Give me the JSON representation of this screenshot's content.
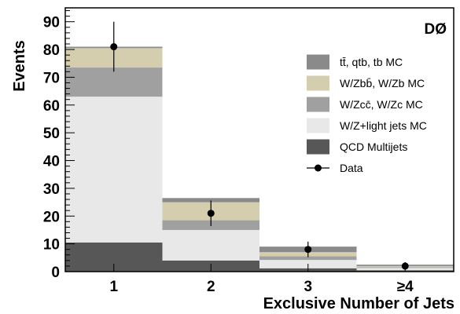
{
  "chart_data": {
    "type": "bar",
    "stacked": true,
    "categories": [
      "1",
      "2",
      "3",
      "≥4"
    ],
    "xlabel": "Exclusive Number of Jets",
    "ylabel": "Events",
    "ylim": [
      0,
      95
    ],
    "yticks": [
      0,
      10,
      20,
      30,
      40,
      50,
      60,
      70,
      80,
      90
    ],
    "experiment_label": "DØ",
    "series": [
      {
        "name": "QCD Multijets",
        "color": "#575757",
        "values": [
          10.5,
          4.0,
          1.2,
          0.5
        ]
      },
      {
        "name": "W/Z+light jets MC",
        "color": "#e8e8e8",
        "values": [
          52.5,
          11.0,
          3.0,
          0.8
        ]
      },
      {
        "name": "W/Zcc̄, W/Zc MC",
        "color": "#a0a0a0",
        "values": [
          10.5,
          3.5,
          1.3,
          0.3
        ]
      },
      {
        "name": "W/Zbb̄, W/Zb MC",
        "color": "#d5ceae",
        "values": [
          7.0,
          6.5,
          1.5,
          0.4
        ]
      },
      {
        "name": "tt̄, qtb, tb MC",
        "color": "#8a8a8a",
        "values": [
          0.5,
          1.5,
          2.0,
          0.5
        ]
      }
    ],
    "data_points": {
      "name": "Data",
      "values": [
        81,
        21,
        8,
        2
      ],
      "errors": [
        9,
        4.6,
        2.8,
        1.4
      ]
    },
    "legend_placement": "right"
  }
}
